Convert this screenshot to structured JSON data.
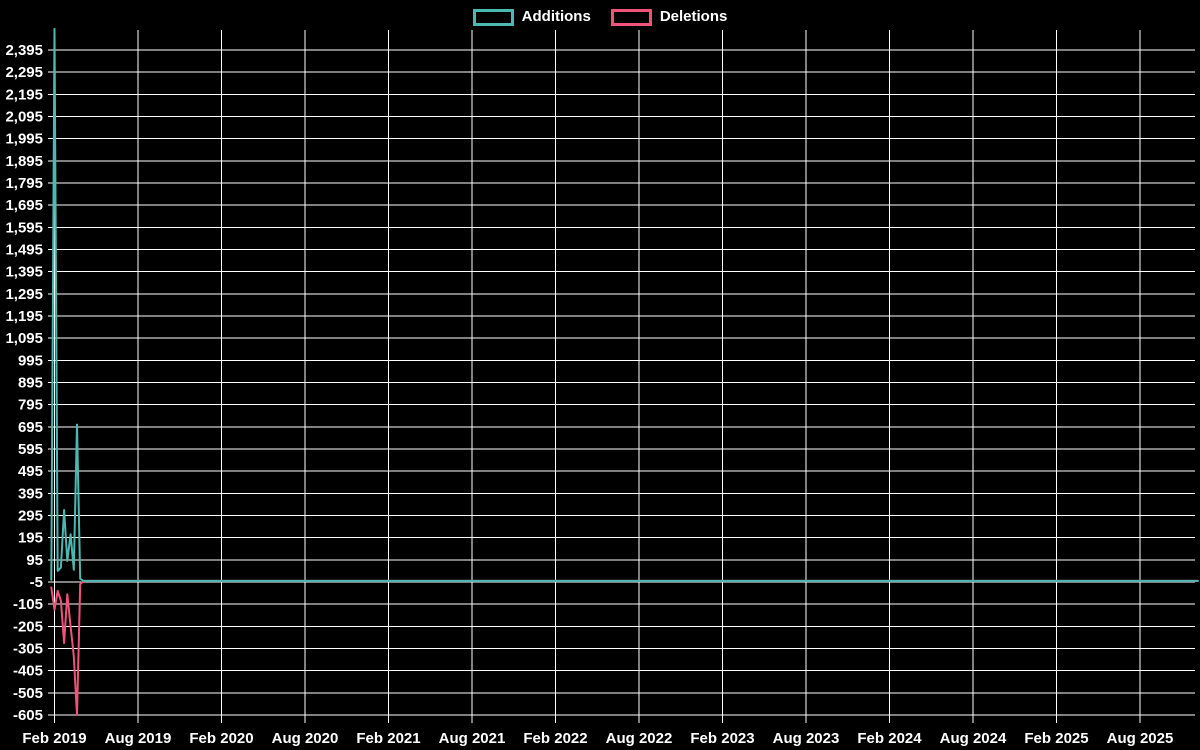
{
  "colors": {
    "background": "#000000",
    "grid": "#ffffff",
    "text": "#ffffff",
    "additions": "#4cb8b2",
    "deletions": "#f0537a"
  },
  "legend": {
    "items": [
      {
        "label": "Additions",
        "color": "#4cb8b2"
      },
      {
        "label": "Deletions",
        "color": "#f0537a"
      }
    ]
  },
  "chart_data": {
    "type": "line",
    "title": "",
    "xlabel": "",
    "ylabel": "",
    "grid": true,
    "legend_position": "top-center",
    "x_unit": "weeks since first x tick (Feb 2019), ticks every 26 weeks",
    "x_tick_labels": [
      "Feb 2019",
      "Aug 2019",
      "Feb 2020",
      "Aug 2020",
      "Feb 2021",
      "Aug 2021",
      "Feb 2022",
      "Aug 2022",
      "Feb 2023",
      "Aug 2023",
      "Feb 2024",
      "Aug 2024",
      "Feb 2025",
      "Aug 2025"
    ],
    "y_ticks": [
      [
        2395,
        "2,395"
      ],
      [
        2295,
        "2,295"
      ],
      [
        2195,
        "2,195"
      ],
      [
        2095,
        "2,095"
      ],
      [
        1995,
        "1,995"
      ],
      [
        1895,
        "1,895"
      ],
      [
        1795,
        "1,795"
      ],
      [
        1695,
        "1,695"
      ],
      [
        1595,
        "1,595"
      ],
      [
        1495,
        "1,495"
      ],
      [
        1395,
        "1,395"
      ],
      [
        1295,
        "1,295"
      ],
      [
        1195,
        "1,195"
      ],
      [
        1095,
        "1,095"
      ],
      [
        995,
        "995"
      ],
      [
        895,
        "895"
      ],
      [
        795,
        "795"
      ],
      [
        695,
        "695"
      ],
      [
        595,
        "595"
      ],
      [
        495,
        "495"
      ],
      [
        395,
        "395"
      ],
      [
        295,
        "295"
      ],
      [
        195,
        "195"
      ],
      [
        95,
        "95"
      ],
      [
        -5,
        "-5"
      ],
      [
        -105,
        "-105"
      ],
      [
        -205,
        "-205"
      ],
      [
        -305,
        "-305"
      ],
      [
        -405,
        "-405"
      ],
      [
        -505,
        "-505"
      ],
      [
        -605,
        "-605"
      ]
    ],
    "ylim": [
      -640,
      2490
    ],
    "series": [
      {
        "name": "Additions",
        "color": "#4cb8b2",
        "points": [
          [
            -1,
            5
          ],
          [
            0,
            2490
          ],
          [
            1,
            45
          ],
          [
            2,
            60
          ],
          [
            3,
            320
          ],
          [
            4,
            90
          ],
          [
            5,
            210
          ],
          [
            6,
            50
          ],
          [
            7,
            705
          ],
          [
            8,
            10
          ],
          [
            9,
            0
          ],
          [
            356,
            0
          ]
        ]
      },
      {
        "name": "Deletions",
        "color": "#f0537a",
        "points": [
          [
            -1,
            -30
          ],
          [
            0,
            -130
          ],
          [
            1,
            -45
          ],
          [
            2,
            -90
          ],
          [
            3,
            -280
          ],
          [
            4,
            -60
          ],
          [
            5,
            -205
          ],
          [
            6,
            -340
          ],
          [
            7,
            -605
          ],
          [
            8,
            -15
          ],
          [
            9,
            0
          ],
          [
            356,
            0
          ]
        ]
      }
    ]
  }
}
